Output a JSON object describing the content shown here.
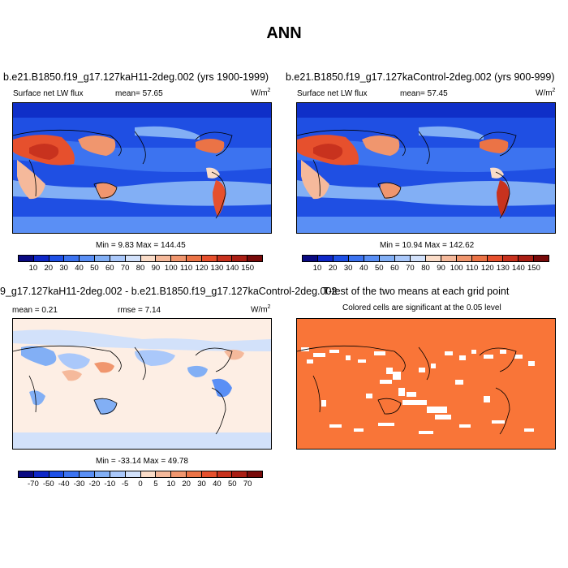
{
  "title": "ANN",
  "panels": {
    "p1": {
      "title": "b.e21.B1850.f19_g17.127kaH11-2deg.002 (yrs 1900-1999)",
      "left_label": "Surface net LW flux",
      "center_label": "mean=  57.65",
      "units_label": "W/m",
      "units_exp": "2",
      "minmax": "Min =   9.83 Max = 144.45"
    },
    "p2": {
      "title": "b.e21.B1850.f19_g17.127kaControl-2deg.002 (yrs 900-999)",
      "left_label": "Surface net LW flux",
      "center_label": "mean=  57.45",
      "units_label": "W/m",
      "units_exp": "2",
      "minmax": "Min =  10.94 Max = 142.62"
    },
    "p3": {
      "title": "9_g17.127kaH11-2deg.002 - b.e21.B1850.f19_g17.127kaControl-2deg.002",
      "left_label": "mean =   0.21",
      "center_label": "rmse =   7.14",
      "units_label": "W/m",
      "units_exp": "2",
      "minmax": "Min = -33.14 Max =  49.78"
    },
    "p4": {
      "title": "T-test of the two means at each grid point",
      "subtitle": "Colored cells are significant at the 0.05 level"
    }
  },
  "colorbar_abs": {
    "labels": [
      "10",
      "20",
      "30",
      "40",
      "50",
      "60",
      "70",
      "80",
      "90",
      "100",
      "110",
      "120",
      "130",
      "140",
      "150"
    ],
    "colors": [
      "#0a0a82",
      "#0f28c8",
      "#1e50e6",
      "#3c73f0",
      "#5a8ff5",
      "#82aff5",
      "#aac8fa",
      "#d2e1fa",
      "#fadcc8",
      "#f5b99b",
      "#f0966e",
      "#eb7346",
      "#e6502d",
      "#c8321e",
      "#aa1e14",
      "#780a0a"
    ]
  },
  "colorbar_diff": {
    "labels": [
      "-70",
      "-50",
      "-40",
      "-30",
      "-20",
      "-10",
      "-5",
      "0",
      "5",
      "10",
      "20",
      "30",
      "40",
      "50",
      "70"
    ],
    "colors": [
      "#0a0a82",
      "#0f28c8",
      "#1e50e6",
      "#3c73f0",
      "#5a8ff5",
      "#82aff5",
      "#aac8fa",
      "#d2e1fa",
      "#fadcc8",
      "#f5b99b",
      "#f0966e",
      "#eb7346",
      "#e6502d",
      "#c8321e",
      "#aa1e14",
      "#780a0a"
    ]
  },
  "ttest_color": "#f97538"
}
